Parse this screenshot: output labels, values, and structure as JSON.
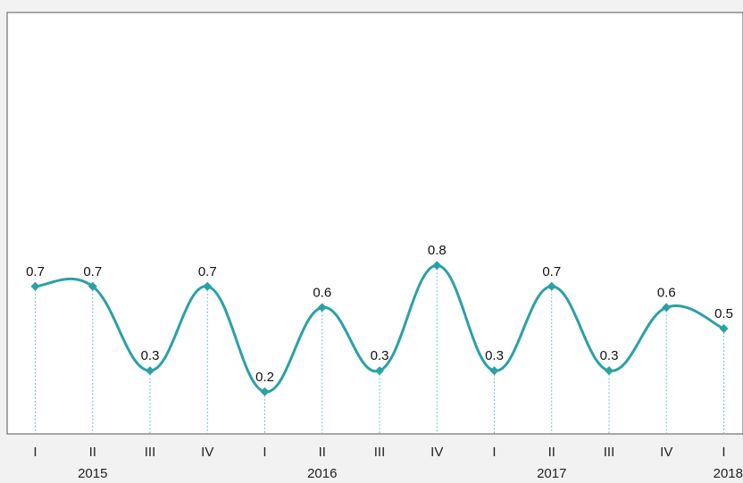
{
  "chart_data": {
    "type": "line",
    "x": [
      "I",
      "II",
      "III",
      "IV",
      "I",
      "II",
      "III",
      "IV",
      "I",
      "II",
      "III",
      "IV",
      "I"
    ],
    "year_labels": [
      {
        "label": "2015",
        "index": 1
      },
      {
        "label": "2016",
        "index": 5
      },
      {
        "label": "2017",
        "index": 9
      },
      {
        "label": "2018",
        "index": 12
      }
    ],
    "values": [
      0.7,
      0.7,
      0.3,
      0.7,
      0.2,
      0.6,
      0.3,
      0.8,
      0.3,
      0.7,
      0.3,
      0.6,
      0.5
    ],
    "labels": [
      "0.7",
      "0.7",
      "0.3",
      "0.7",
      "0.2",
      "0.6",
      "0.3",
      "0.8",
      "0.3",
      "0.7",
      "0.3",
      "0.6",
      "0.5"
    ],
    "ylim": [
      0,
      2
    ],
    "grid": false,
    "color": "#2aa1a6",
    "drop_line_color": "#6cc4c8",
    "title": "",
    "xlabel": "",
    "ylabel": ""
  }
}
